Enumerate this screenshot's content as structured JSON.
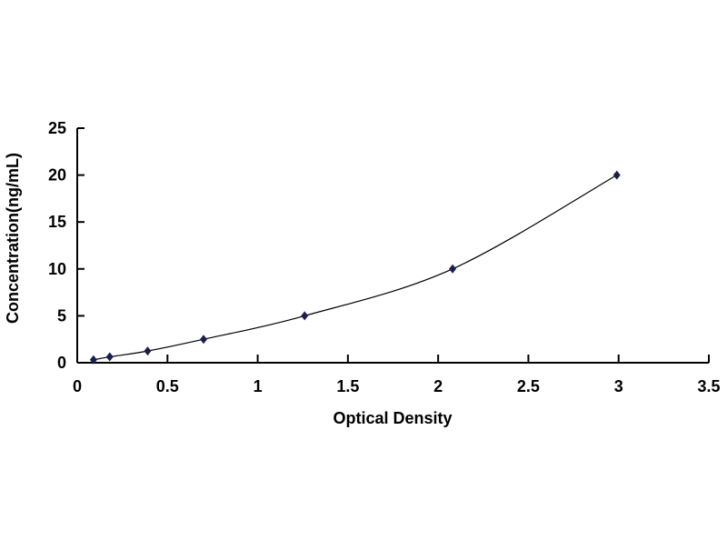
{
  "chart_data": {
    "type": "scatter",
    "title": "",
    "xlabel": "Optical Density",
    "ylabel": "Concentration(ng/mL)",
    "xlim": [
      0,
      3.5
    ],
    "ylim": [
      0,
      25
    ],
    "x_ticks": [
      "0",
      "0.5",
      "1",
      "1.5",
      "2",
      "2.5",
      "3",
      "3.5"
    ],
    "y_ticks": [
      "0",
      "5",
      "10",
      "15",
      "20",
      "25"
    ],
    "grid": false,
    "legend": "none",
    "trendline": "smooth curve",
    "marker": "diamond",
    "colors": {
      "marker": "#1a1f4d",
      "line": "#000000"
    },
    "series": [
      {
        "x": [
          0.09,
          0.18,
          0.39,
          0.7,
          1.26,
          2.08,
          2.99
        ],
        "y": [
          0.31,
          0.625,
          1.25,
          2.5,
          5,
          10,
          20
        ]
      }
    ]
  }
}
